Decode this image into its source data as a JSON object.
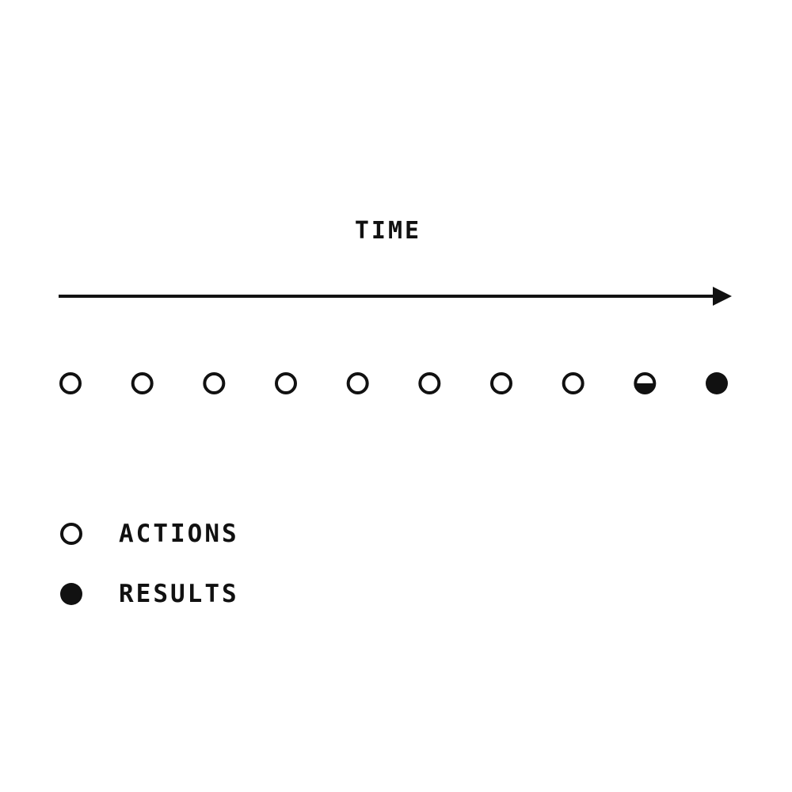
{
  "time_label": "TIME",
  "timeline": {
    "markers": [
      {
        "state": "action"
      },
      {
        "state": "action"
      },
      {
        "state": "action"
      },
      {
        "state": "action"
      },
      {
        "state": "action"
      },
      {
        "state": "action"
      },
      {
        "state": "action"
      },
      {
        "state": "action"
      },
      {
        "state": "half"
      },
      {
        "state": "result"
      }
    ]
  },
  "legend": {
    "actions_label": "ACTIONS",
    "results_label": "RESULTS"
  },
  "colors": {
    "ink": "#111111",
    "background": "#ffffff"
  }
}
